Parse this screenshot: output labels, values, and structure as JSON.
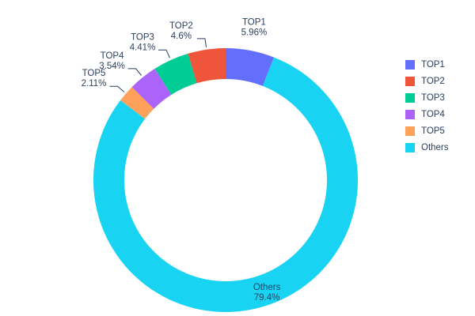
{
  "background": "#ffffff",
  "text_color": "#2a3f5f",
  "legend": {
    "position": "right",
    "items": [
      "TOP1",
      "TOP2",
      "TOP3",
      "TOP4",
      "TOP5",
      "Others"
    ]
  },
  "chart_data": {
    "type": "pie",
    "title": "",
    "hole": 0.766,
    "start_angle": "top",
    "legend_position": "right",
    "draw_order_clockwise_from_top": [
      "TOP1",
      "Others",
      "TOP5",
      "TOP4",
      "TOP3",
      "TOP2"
    ],
    "series": [
      {
        "name": "TOP1",
        "value": 5.96,
        "pct_label": "5.96%",
        "color": "#636EFA"
      },
      {
        "name": "TOP2",
        "value": 4.6,
        "pct_label": "4.6%",
        "color": "#EF553B"
      },
      {
        "name": "TOP3",
        "value": 4.41,
        "pct_label": "4.41%",
        "color": "#00CC96"
      },
      {
        "name": "TOP4",
        "value": 3.54,
        "pct_label": "3.54%",
        "color": "#AB63FA"
      },
      {
        "name": "TOP5",
        "value": 2.11,
        "pct_label": "2.11%",
        "color": "#FFA15A"
      },
      {
        "name": "Others",
        "value": 79.4,
        "pct_label": "79.4%",
        "color": "#19D3F3"
      }
    ]
  }
}
